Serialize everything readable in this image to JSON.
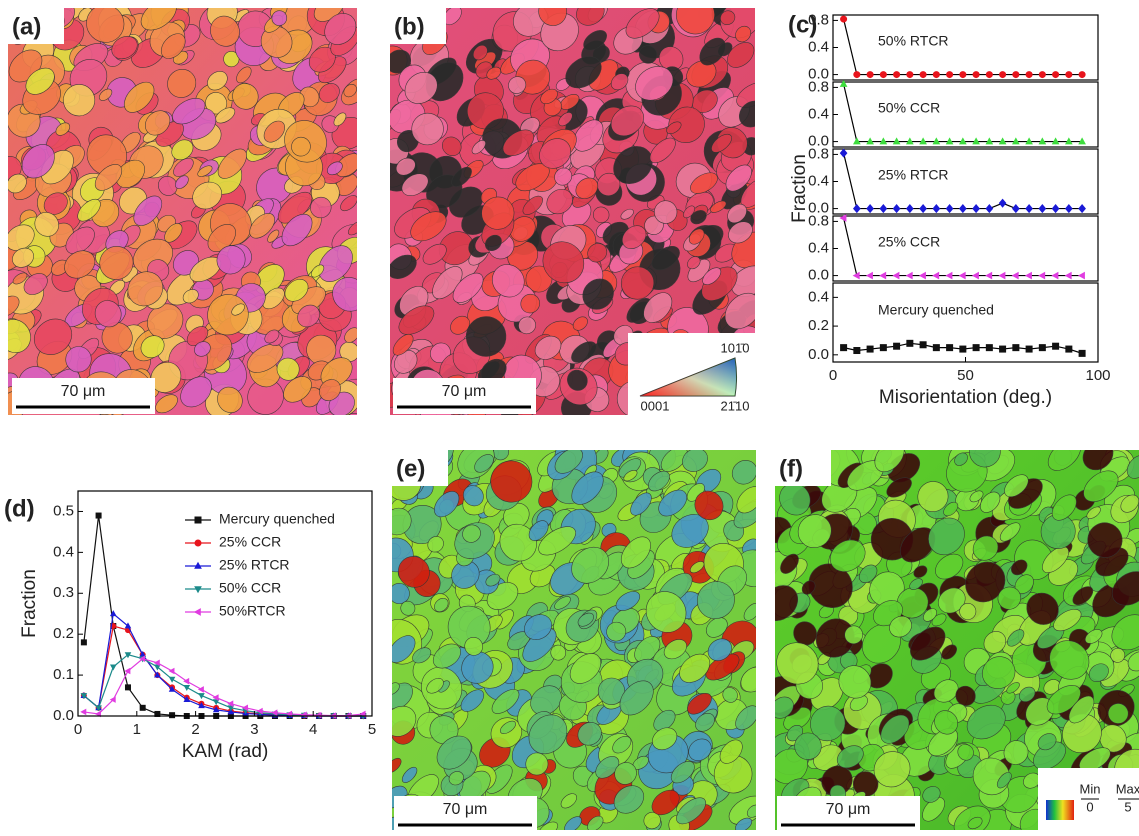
{
  "panels": [
    {
      "label": "(a)",
      "scale_bar": "70 μm"
    },
    {
      "label": "(b)",
      "scale_bar": "70 μm"
    },
    {
      "label": "(c)"
    },
    {
      "label": "(d)"
    },
    {
      "label": "(e)",
      "scale_bar": "70 μm"
    },
    {
      "label": "(f)",
      "scale_bar": "70 μm"
    }
  ],
  "ipf_legend": {
    "labels": [
      "101̄0",
      "0001",
      "21̄10"
    ]
  },
  "kam_legend": {
    "labels": [
      "Min",
      "0",
      "Max",
      "5"
    ]
  },
  "chart_data": [
    {
      "type": "line",
      "ylabel": "Fraction",
      "xlabel": "Misorientation (deg.)",
      "x": [
        4,
        9,
        14,
        19,
        24,
        29,
        34,
        39,
        44,
        49,
        54,
        59,
        64,
        69,
        74,
        79,
        84,
        89,
        94
      ],
      "xlim": [
        0,
        100
      ],
      "xticks": [
        0,
        50,
        100
      ],
      "series": [
        {
          "name": "50% RTCR",
          "color": "#e8141c",
          "marker": "circle",
          "ylim": [
            -0.08,
            0.88
          ],
          "yticks": [
            {
              "value": 0,
              "label": "0.0"
            },
            {
              "value": 0.4,
              "label": "0.4"
            },
            {
              "value": 0.8,
              "label": "0.8"
            }
          ],
          "values": [
            0.82,
            0,
            0,
            0,
            0,
            0,
            0,
            0,
            0,
            0,
            0,
            0,
            0,
            0,
            0,
            0,
            0,
            0,
            0
          ]
        },
        {
          "name": "50% CCR",
          "color": "#3ddc3d",
          "marker": "triangle",
          "ylim": [
            -0.08,
            0.88
          ],
          "yticks": [
            {
              "value": 0,
              "label": "0.0"
            },
            {
              "value": 0.4,
              "label": "0.4"
            },
            {
              "value": 0.8,
              "label": "0.8"
            }
          ],
          "values": [
            0.85,
            0,
            0,
            0,
            0,
            0,
            0,
            0,
            0,
            0,
            0,
            0,
            0,
            0,
            0,
            0,
            0,
            0,
            0
          ]
        },
        {
          "name": "25% RTCR",
          "color": "#1a1ad6",
          "marker": "diamond",
          "ylim": [
            -0.08,
            0.88
          ],
          "yticks": [
            {
              "value": 0,
              "label": "0.0"
            },
            {
              "value": 0.4,
              "label": "0.4"
            },
            {
              "value": 0.8,
              "label": "0.8"
            }
          ],
          "values": [
            0.82,
            0,
            0,
            0,
            0,
            0,
            0,
            0,
            0,
            0,
            0,
            0,
            0.08,
            0,
            0,
            0,
            0,
            0,
            0
          ]
        },
        {
          "name": "25% CCR",
          "color": "#e03ce0",
          "marker": "ltriangle",
          "ylim": [
            -0.08,
            0.88
          ],
          "yticks": [
            {
              "value": 0,
              "label": "0.0"
            },
            {
              "value": 0.4,
              "label": "0.4"
            },
            {
              "value": 0.8,
              "label": "0.8"
            }
          ],
          "values": [
            0.85,
            0,
            0,
            0,
            0,
            0,
            0,
            0,
            0,
            0,
            0,
            0,
            0,
            0,
            0,
            0,
            0,
            0,
            0
          ]
        },
        {
          "name": "Mercury quenched",
          "color": "#111111",
          "marker": "square",
          "ylim": [
            -0.05,
            0.5
          ],
          "yticks": [
            {
              "value": 0,
              "label": "0.0"
            },
            {
              "value": 0.2,
              "label": "0.2"
            },
            {
              "value": 0.4,
              "label": "0.4"
            }
          ],
          "values": [
            0.05,
            0.03,
            0.04,
            0.05,
            0.06,
            0.08,
            0.07,
            0.05,
            0.05,
            0.04,
            0.05,
            0.05,
            0.04,
            0.05,
            0.04,
            0.05,
            0.06,
            0.04,
            0.01
          ]
        }
      ]
    },
    {
      "type": "line",
      "ylabel": "Fraction",
      "xlabel": "KAM (rad)",
      "x": [
        0.1,
        0.35,
        0.6,
        0.85,
        1.1,
        1.35,
        1.6,
        1.85,
        2.1,
        2.35,
        2.6,
        2.85,
        3.1,
        3.35,
        3.6,
        3.85,
        4.1,
        4.35,
        4.6,
        4.85
      ],
      "xlim": [
        0,
        5
      ],
      "xticks": [
        0,
        1,
        2,
        3,
        4,
        5
      ],
      "ylim": [
        0,
        0.55
      ],
      "yticks": [
        {
          "value": 0,
          "label": "0.0"
        },
        0.1,
        0.2,
        0.3,
        0.4,
        0.5
      ],
      "legend": "upper right",
      "series": [
        {
          "name": "Mercury quenched",
          "color": "#111111",
          "marker": "square",
          "values": [
            0.18,
            0.49,
            0.22,
            0.07,
            0.02,
            0.005,
            0.002,
            0,
            0,
            0,
            0,
            0,
            0,
            0,
            0,
            0,
            0,
            0,
            0,
            0
          ]
        },
        {
          "name": "25% CCR",
          "color": "#e8141c",
          "marker": "circle",
          "values": [
            0.05,
            0.02,
            0.22,
            0.21,
            0.15,
            0.1,
            0.07,
            0.045,
            0.03,
            0.02,
            0.012,
            0.008,
            0.005,
            0.003,
            0.002,
            0.001,
            0.001,
            0,
            0,
            0
          ]
        },
        {
          "name": "25% RTCR",
          "color": "#1a1ad6",
          "marker": "triangle",
          "values": [
            0.05,
            0.02,
            0.25,
            0.22,
            0.15,
            0.1,
            0.065,
            0.04,
            0.025,
            0.015,
            0.01,
            0.006,
            0.004,
            0.002,
            0.001,
            0.001,
            0,
            0,
            0,
            0
          ]
        },
        {
          "name": "50% CCR",
          "color": "#1b8a8a",
          "marker": "dtriangle",
          "values": [
            0.05,
            0.02,
            0.12,
            0.15,
            0.14,
            0.12,
            0.09,
            0.07,
            0.05,
            0.035,
            0.02,
            0.013,
            0.008,
            0.005,
            0.003,
            0.002,
            0.001,
            0.001,
            0,
            0
          ]
        },
        {
          "name": "50%RTCR",
          "color": "#e03ce0",
          "marker": "ltriangle",
          "values": [
            0.01,
            0.005,
            0.04,
            0.11,
            0.14,
            0.13,
            0.11,
            0.085,
            0.065,
            0.045,
            0.03,
            0.02,
            0.012,
            0.008,
            0.005,
            0.003,
            0.002,
            0.001,
            0.001,
            0.005
          ]
        }
      ]
    }
  ]
}
